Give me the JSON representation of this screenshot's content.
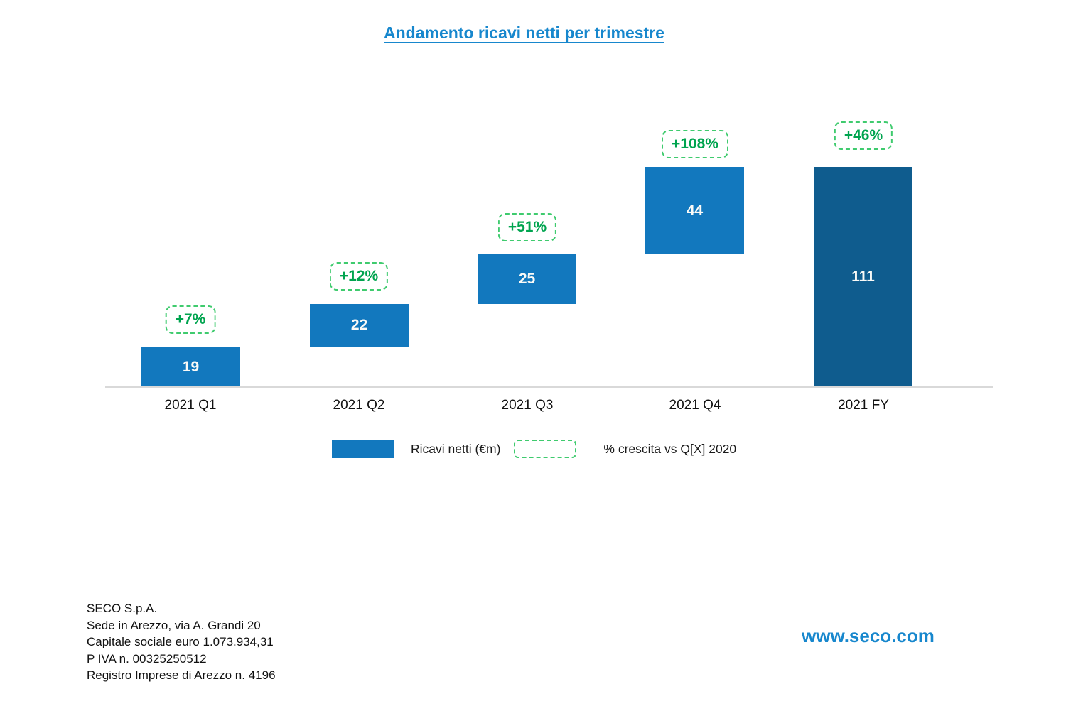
{
  "chart_data": {
    "type": "bar",
    "variant": "waterfall",
    "title": "Andamento ricavi netti per trimestre",
    "categories": [
      "2021 Q1",
      "2021 Q2",
      "2021 Q3",
      "2021 Q4",
      "2021 FY"
    ],
    "values": [
      19,
      22,
      25,
      44,
      111
    ],
    "waterfall_starts": [
      0,
      19,
      41,
      66,
      0
    ],
    "growth_labels": [
      "+7%",
      "+12%",
      "+51%",
      "+108%",
      "+46%"
    ],
    "series": [
      {
        "name": "Ricavi netti (€m)",
        "values": [
          19,
          22,
          25,
          44,
          111
        ]
      }
    ],
    "ylim": [
      0,
      111
    ],
    "value_axis_visible": false,
    "grid": false,
    "legend_position": "bottom",
    "legend": [
      {
        "label": "Ricavi netti (€m)",
        "swatch": "solid-blue"
      },
      {
        "label": "% crescita vs Q[X] 2020",
        "swatch": "dashed-green"
      }
    ],
    "colors": {
      "bar_quarter": "#1278be",
      "bar_total": "#0f5c8e",
      "growth_border": "#3fcb6e",
      "growth_text": "#00a44f",
      "title_blue": "#1787cd",
      "axis_line": "#d9d9d9",
      "value_label": "#ffffff"
    }
  },
  "footer": {
    "company_lines": [
      "SECO S.p.A.",
      "Sede in Arezzo, via A. Grandi 20",
      "Capitale sociale euro 1.073.934,31",
      "P IVA n. 00325250512",
      "Registro Imprese di Arezzo n. 4196"
    ],
    "website": "www.seco.com"
  }
}
